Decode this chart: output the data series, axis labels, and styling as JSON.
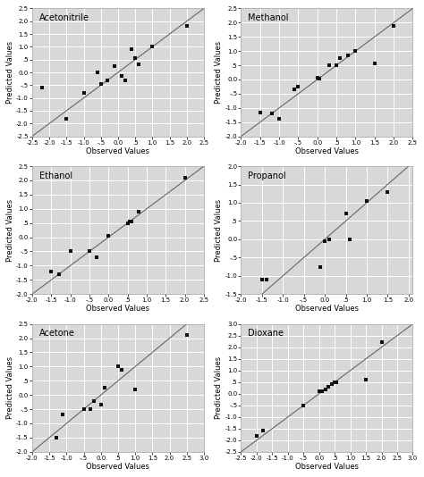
{
  "subplots": [
    {
      "title": "Acetonitrile",
      "xlim": [
        -2.5,
        2.5
      ],
      "ylim": [
        -2.5,
        2.5
      ],
      "xmajor": 0.5,
      "ymajor": 0.5,
      "diag_start": -2.5,
      "diag_end": 2.5,
      "scatter_x": [
        -2.2,
        -1.5,
        -1.0,
        -0.6,
        -0.5,
        -0.3,
        -0.1,
        0.1,
        0.2,
        0.4,
        0.5,
        0.6,
        1.0,
        2.0
      ],
      "scatter_y": [
        -0.6,
        -1.8,
        -0.8,
        0.0,
        -0.45,
        -0.3,
        0.25,
        -0.15,
        -0.3,
        0.9,
        0.55,
        0.3,
        1.0,
        1.8
      ]
    },
    {
      "title": "Methanol",
      "xlim": [
        -2.0,
        2.5
      ],
      "ylim": [
        -2.0,
        2.5
      ],
      "xmajor": 0.5,
      "ymajor": 0.5,
      "diag_start": -2.0,
      "diag_end": 2.5,
      "scatter_x": [
        -1.5,
        -1.2,
        -1.0,
        -0.6,
        -0.5,
        0.0,
        0.05,
        0.3,
        0.5,
        0.6,
        0.8,
        1.0,
        1.5,
        2.0
      ],
      "scatter_y": [
        -1.15,
        -1.2,
        -1.4,
        -0.35,
        -0.25,
        0.05,
        0.02,
        0.5,
        0.5,
        0.75,
        0.85,
        1.0,
        0.55,
        1.9
      ]
    },
    {
      "title": "Ethanol",
      "xlim": [
        -2.0,
        2.5
      ],
      "ylim": [
        -2.0,
        2.5
      ],
      "xmajor": 0.5,
      "ymajor": 0.5,
      "diag_start": -2.0,
      "diag_end": 2.5,
      "scatter_x": [
        -1.5,
        -1.3,
        -1.0,
        -0.5,
        -0.3,
        0.0,
        0.5,
        0.55,
        0.6,
        0.8,
        2.0
      ],
      "scatter_y": [
        -1.2,
        -1.3,
        -0.5,
        -0.5,
        -0.7,
        0.05,
        0.5,
        0.55,
        0.55,
        0.9,
        2.1
      ]
    },
    {
      "title": "Propanol",
      "xlim": [
        -2.0,
        2.1
      ],
      "ylim": [
        -1.5,
        2.0
      ],
      "xmajor": 0.5,
      "ymajor": 0.5,
      "diag_start": -2.0,
      "diag_end": 2.1,
      "scatter_x": [
        -1.5,
        -1.4,
        -0.1,
        0.0,
        0.1,
        0.5,
        0.6,
        1.0,
        1.5
      ],
      "scatter_y": [
        -1.1,
        -1.1,
        -0.75,
        -0.05,
        0.0,
        0.7,
        0.0,
        1.05,
        1.3
      ]
    },
    {
      "title": "Acetone",
      "xlim": [
        -2.0,
        3.0
      ],
      "ylim": [
        -2.0,
        2.5
      ],
      "xmajor": 0.5,
      "ymajor": 0.5,
      "diag_start": -2.0,
      "diag_end": 3.0,
      "scatter_x": [
        -1.3,
        -1.1,
        -0.5,
        -0.3,
        -0.2,
        0.0,
        0.1,
        0.5,
        0.6,
        1.0,
        2.5
      ],
      "scatter_y": [
        -1.5,
        -0.7,
        -0.5,
        -0.5,
        -0.2,
        -0.35,
        0.25,
        1.0,
        0.9,
        0.2,
        2.1
      ]
    },
    {
      "title": "Dioxane",
      "xlim": [
        -2.5,
        3.0
      ],
      "ylim": [
        -2.5,
        3.0
      ],
      "xmajor": 0.5,
      "ymajor": 0.5,
      "diag_start": -2.5,
      "diag_end": 3.0,
      "scatter_x": [
        -2.0,
        -1.8,
        -0.5,
        0.0,
        0.1,
        0.2,
        0.3,
        0.4,
        0.5,
        0.55,
        1.5,
        2.0
      ],
      "scatter_y": [
        -1.8,
        -1.6,
        -0.5,
        0.1,
        0.1,
        0.2,
        0.3,
        0.4,
        0.5,
        0.5,
        0.6,
        2.2
      ]
    }
  ],
  "xlabel": "Observed Values",
  "ylabel": "Predicted Values",
  "dot_color": "#111111",
  "dot_size": 5,
  "line_color": "#666666",
  "bg_color": "#d8d8d8",
  "grid_color": "#ffffff",
  "title_fontsize": 7,
  "label_fontsize": 6,
  "tick_fontsize": 5,
  "figure_bg": "#ffffff"
}
